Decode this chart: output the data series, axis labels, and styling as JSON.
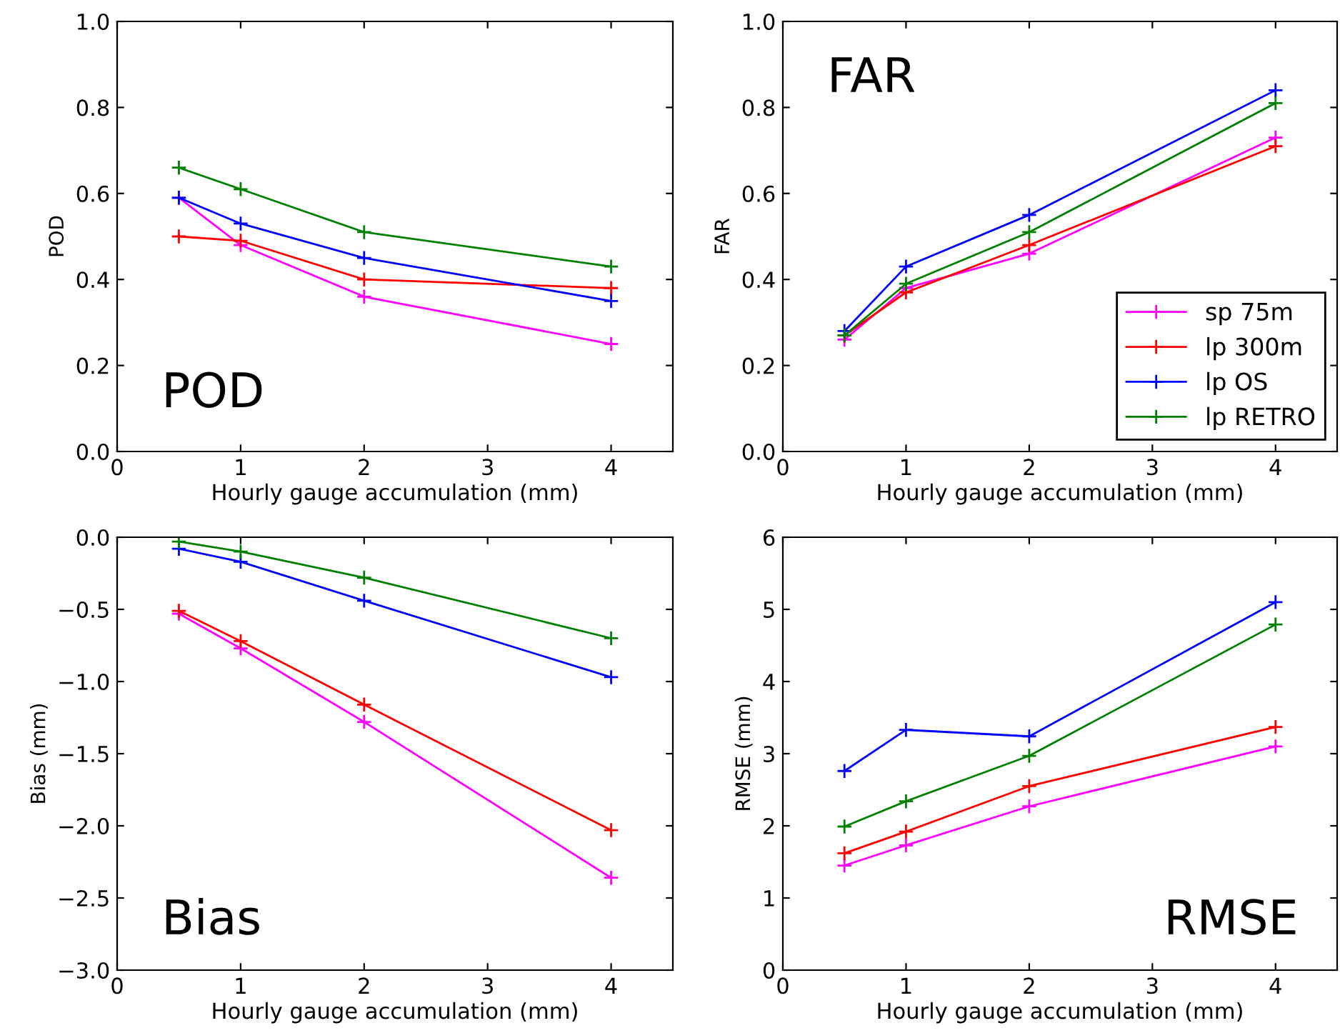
{
  "chart_data": [
    {
      "type": "line",
      "xlabel": "Hourly gauge accumulation (mm)",
      "ylabel": "POD",
      "annotations": [
        "POD"
      ],
      "marker": "cross",
      "grid": false,
      "legend": false,
      "xlim": [
        0,
        4.5
      ],
      "xticks": [
        0,
        1,
        2,
        3,
        4
      ],
      "ylim": [
        0,
        1.0
      ],
      "yticks": [
        {
          "value": 0,
          "label": "0.0"
        },
        0.2,
        0.4,
        0.6,
        0.8,
        {
          "value": 1,
          "label": "1.0"
        }
      ],
      "series": [
        {
          "color": "#ff00ff",
          "x": [
            0.5,
            1,
            2,
            4
          ],
          "values": [
            0.59,
            0.48,
            0.36,
            0.25
          ]
        },
        {
          "color": "#ff0000",
          "x": [
            0.5,
            1,
            2,
            4
          ],
          "values": [
            0.5,
            0.49,
            0.4,
            0.38
          ]
        },
        {
          "color": "#0000ff",
          "x": [
            0.5,
            1,
            2,
            4
          ],
          "values": [
            0.59,
            0.53,
            0.45,
            0.35
          ]
        },
        {
          "color": "#008000",
          "x": [
            0.5,
            1,
            2,
            4
          ],
          "values": [
            0.66,
            0.61,
            0.51,
            0.43
          ]
        }
      ]
    },
    {
      "type": "line",
      "xlabel": "Hourly gauge accumulation (mm)",
      "ylabel": "FAR",
      "annotations": [
        "FAR"
      ],
      "marker": "cross",
      "grid": false,
      "legend": "bottom right",
      "xlim": [
        0,
        4.5
      ],
      "xticks": [
        0,
        1,
        2,
        3,
        4
      ],
      "ylim": [
        0,
        1.0
      ],
      "yticks": [
        {
          "value": 0,
          "label": "0.0"
        },
        0.2,
        0.4,
        0.6,
        0.8,
        {
          "value": 1,
          "label": "1.0"
        }
      ],
      "series": [
        {
          "name": "sp 75m",
          "color": "#ff00ff",
          "x": [
            0.5,
            1,
            2,
            4
          ],
          "values": [
            0.26,
            0.38,
            0.46,
            0.73
          ]
        },
        {
          "name": "lp 300m",
          "color": "#ff0000",
          "x": [
            0.5,
            1,
            2,
            4
          ],
          "values": [
            0.27,
            0.37,
            0.48,
            0.71
          ]
        },
        {
          "name": "lp OS",
          "color": "#0000ff",
          "x": [
            0.5,
            1,
            2,
            4
          ],
          "values": [
            0.28,
            0.43,
            0.55,
            0.84
          ]
        },
        {
          "name": "lp RETRO",
          "color": "#008000",
          "x": [
            0.5,
            1,
            2,
            4
          ],
          "values": [
            0.27,
            0.39,
            0.51,
            0.81
          ]
        }
      ]
    },
    {
      "type": "line",
      "xlabel": "Hourly gauge accumulation (mm)",
      "ylabel": "Bias (mm)",
      "annotations": [
        "Bias"
      ],
      "marker": "cross",
      "grid": false,
      "legend": false,
      "xlim": [
        0,
        4.5
      ],
      "xticks": [
        0,
        1,
        2,
        3,
        4
      ],
      "ylim": [
        -3.0,
        0
      ],
      "yticks": [
        {
          "value": -3,
          "label": "−3.0"
        },
        {
          "value": -2.5,
          "label": "−2.5"
        },
        {
          "value": -2,
          "label": "−2.0"
        },
        {
          "value": -1.5,
          "label": "−1.5"
        },
        {
          "value": -1,
          "label": "−1.0"
        },
        {
          "value": -0.5,
          "label": "−0.5"
        },
        {
          "value": 0,
          "label": "0.0"
        }
      ],
      "series": [
        {
          "color": "#ff00ff",
          "x": [
            0.5,
            1,
            2,
            4
          ],
          "values": [
            -0.53,
            -0.77,
            -1.28,
            -2.36
          ]
        },
        {
          "color": "#ff0000",
          "x": [
            0.5,
            1,
            2,
            4
          ],
          "values": [
            -0.51,
            -0.72,
            -1.16,
            -2.03
          ]
        },
        {
          "color": "#0000ff",
          "x": [
            0.5,
            1,
            2,
            4
          ],
          "values": [
            -0.08,
            -0.17,
            -0.44,
            -0.97
          ]
        },
        {
          "color": "#008000",
          "x": [
            0.5,
            1,
            2,
            4
          ],
          "values": [
            -0.03,
            -0.1,
            -0.28,
            -0.7
          ]
        }
      ]
    },
    {
      "type": "line",
      "xlabel": "Hourly gauge accumulation (mm)",
      "ylabel": "RMSE (mm)",
      "annotations": [
        "RMSE"
      ],
      "marker": "cross",
      "grid": false,
      "legend": false,
      "xlim": [
        0,
        4.5
      ],
      "xticks": [
        0,
        1,
        2,
        3,
        4
      ],
      "ylim": [
        0,
        6
      ],
      "yticks": [
        0,
        1,
        2,
        3,
        4,
        5,
        6
      ],
      "series": [
        {
          "color": "#ff00ff",
          "x": [
            0.5,
            1,
            2,
            4
          ],
          "values": [
            1.45,
            1.73,
            2.27,
            3.1
          ]
        },
        {
          "color": "#ff0000",
          "x": [
            0.5,
            1,
            2,
            4
          ],
          "values": [
            1.62,
            1.92,
            2.55,
            3.37
          ]
        },
        {
          "color": "#0000ff",
          "x": [
            0.5,
            1,
            2,
            4
          ],
          "values": [
            2.76,
            3.33,
            3.24,
            5.1
          ]
        },
        {
          "color": "#008000",
          "x": [
            0.5,
            1,
            2,
            4
          ],
          "values": [
            1.99,
            2.34,
            2.97,
            4.79
          ]
        }
      ]
    }
  ]
}
